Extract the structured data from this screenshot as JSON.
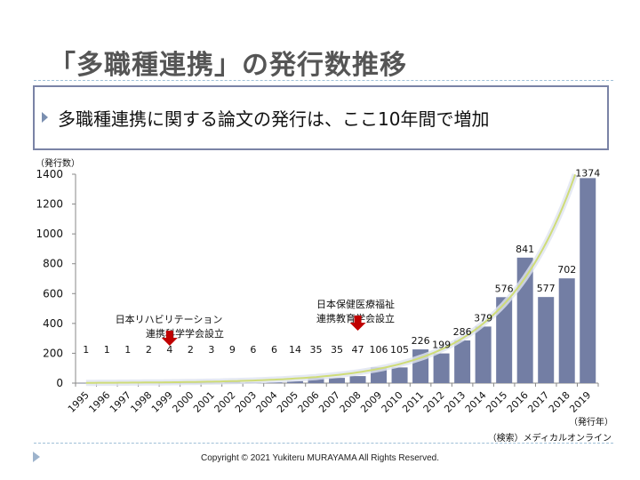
{
  "slide": {
    "title": "「多職種連携」の発行数推移",
    "point": "多職種連携に関する論文の発行は、ここ10年間で増加",
    "copyright": "Copyright © 2021 Yukiteru MURAYAMA All Rights Reserved."
  },
  "chart_data": {
    "type": "bar",
    "ylabel": "（発行数）",
    "xlabel": "（発行年）",
    "source": "（検索）メディカルオンライン",
    "ylim": [
      0,
      1400
    ],
    "yticks": [
      "0",
      "200",
      "400",
      "600",
      "800",
      "1000",
      "1200",
      "1400"
    ],
    "categories": [
      "1995",
      "1996",
      "1997",
      "1998",
      "1999",
      "2000",
      "2001",
      "2002",
      "2003",
      "2004",
      "2005",
      "2006",
      "2007",
      "2008",
      "2009",
      "2010",
      "2011",
      "2012",
      "2013",
      "2014",
      "2015",
      "2016",
      "2017",
      "2018",
      "2019"
    ],
    "values": [
      1,
      1,
      1,
      2,
      4,
      2,
      3,
      9,
      6,
      6,
      14,
      35,
      35,
      47,
      106,
      105,
      226,
      199,
      286,
      379,
      576,
      841,
      577,
      702,
      1374
    ],
    "trendline": "exponential",
    "annotations": [
      {
        "category": "1999",
        "lines": [
          "日本リハビリテーション",
          "連携科学学会設立"
        ]
      },
      {
        "category": "2008",
        "lines": [
          "日本保健医療福祉",
          "連携教育学会設立"
        ]
      }
    ],
    "colors": {
      "bar": "#737ea4",
      "trend": "#cfdc78",
      "arrow": "#c00000"
    },
    "grid": false,
    "legend": "none"
  }
}
